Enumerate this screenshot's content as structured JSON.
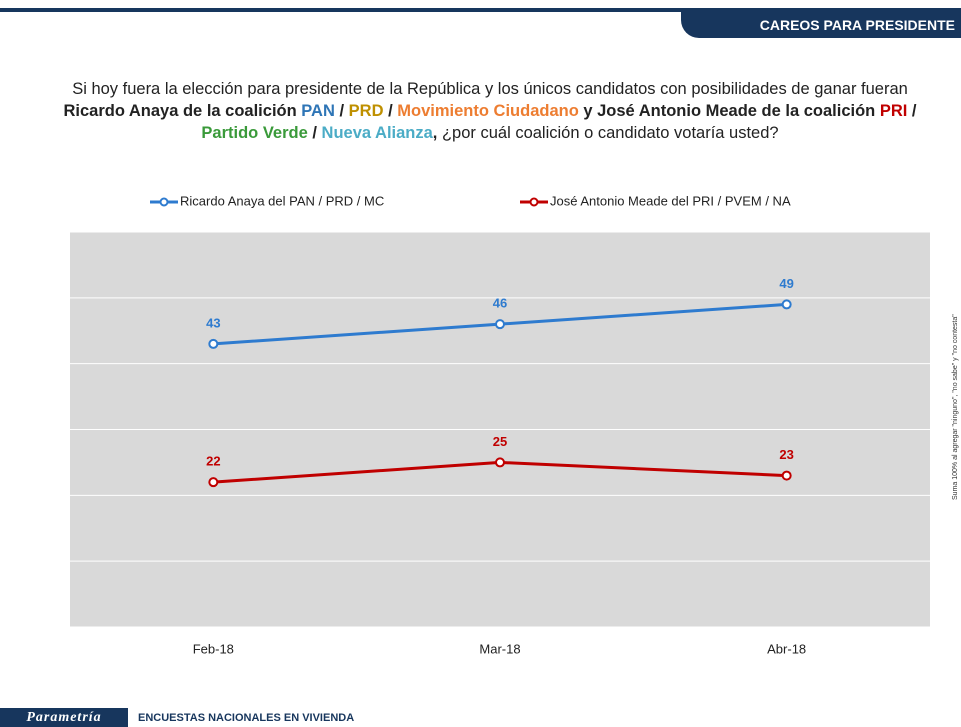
{
  "header": "CAREOS PARA PRESIDENTE",
  "question": [
    {
      "text": "Si hoy fuera la elección para presidente de la República y los únicos candidatos con posibilidades de ganar fueran ",
      "bold": false,
      "color": "#222222"
    },
    {
      "text": "Ricardo Anaya de la coalición ",
      "bold": true,
      "color": "#222222"
    },
    {
      "text": "PAN",
      "bold": true,
      "color": "#2e75b6"
    },
    {
      "text": " / ",
      "bold": true,
      "color": "#222222"
    },
    {
      "text": "PRD",
      "bold": true,
      "color": "#bf9000"
    },
    {
      "text": " / ",
      "bold": true,
      "color": "#222222"
    },
    {
      "text": "Movimiento Ciudadano",
      "bold": true,
      "color": "#ed7d31"
    },
    {
      "text": " y José Antonio Meade de la coalición ",
      "bold": true,
      "color": "#222222"
    },
    {
      "text": "PRI",
      "bold": true,
      "color": "#c00000"
    },
    {
      "text": " / ",
      "bold": true,
      "color": "#222222"
    },
    {
      "text": "Partido Verde",
      "bold": true,
      "color": "#3a9a3a"
    },
    {
      "text": " / ",
      "bold": true,
      "color": "#222222"
    },
    {
      "text": "Nueva Alianza",
      "bold": true,
      "color": "#4bacc6"
    },
    {
      "text": ", ",
      "bold": true,
      "color": "#222222"
    },
    {
      "text": "¿por cuál coalición o candidato votaría usted?",
      "bold": false,
      "color": "#222222"
    }
  ],
  "note": "Suma 100% al agregar \"ninguno\", \"no sabe\" y \"no contesta\"",
  "footer": {
    "logo": "Parametría",
    "text": "ENCUESTAS NACIONALES EN VIVIENDA"
  },
  "chart_data": {
    "type": "line",
    "categories": [
      "Feb-18",
      "Mar-18",
      "Abr-18"
    ],
    "series": [
      {
        "name": "Ricardo Anaya del PAN / PRD / MC",
        "color": "#2e7bcf",
        "values": [
          43,
          46,
          49
        ]
      },
      {
        "name": "José Antonio Meade del PRI / PVEM / NA",
        "color": "#c00000",
        "values": [
          22,
          25,
          23
        ]
      }
    ],
    "ylim": [
      0,
      60
    ],
    "yticks": [
      0,
      10,
      20,
      30,
      40,
      50,
      60
    ],
    "grid": true
  }
}
